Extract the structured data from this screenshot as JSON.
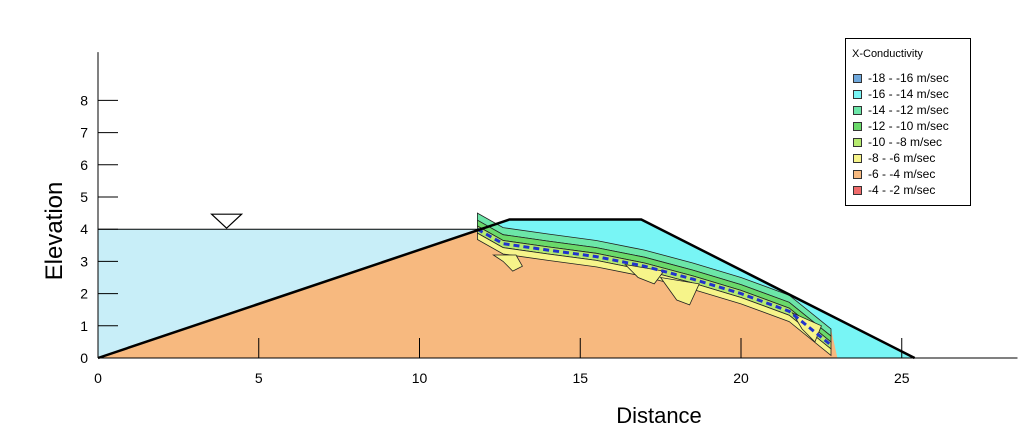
{
  "chart_data": {
    "type": "area",
    "xlabel": "Distance",
    "ylabel": "Elevation",
    "xlim": [
      0,
      28.6
    ],
    "ylim": [
      0,
      9.5
    ],
    "x_ticks": [
      0,
      5,
      10,
      15,
      20,
      25
    ],
    "y_ticks": [
      0,
      1,
      2,
      3,
      4,
      5,
      6,
      7,
      8
    ],
    "reservoir_level": 4,
    "dam_profile": [
      [
        0,
        0
      ],
      [
        12.8,
        4.3
      ],
      [
        16.9,
        4.3
      ],
      [
        25.4,
        0
      ]
    ],
    "phreatic_line": [
      [
        11.8,
        4.0
      ],
      [
        12.6,
        3.55
      ],
      [
        14,
        3.35
      ],
      [
        15.5,
        3.15
      ],
      [
        17,
        2.85
      ],
      [
        18.5,
        2.45
      ],
      [
        20,
        2.0
      ],
      [
        21.5,
        1.45
      ],
      [
        22.8,
        0.4
      ]
    ],
    "legend_title": "X-Conductivity",
    "legend": [
      {
        "label": "-18 - -16 m/sec",
        "color": "#6fa8dc"
      },
      {
        "label": "-16 - -14 m/sec",
        "color": "#78f5f5"
      },
      {
        "label": "-14 - -12 m/sec",
        "color": "#6ce6a8"
      },
      {
        "label": "-12 - -10 m/sec",
        "color": "#6ad96a"
      },
      {
        "label": "-10 - -8 m/sec",
        "color": "#b5ea6e"
      },
      {
        "label": "-8 - -6 m/sec",
        "color": "#f6f48a"
      },
      {
        "label": "-6 - -4 m/sec",
        "color": "#f7b97f"
      },
      {
        "label": "-4 - -2 m/sec",
        "color": "#ef6a6a"
      }
    ],
    "region_colors": {
      "water": "#c8eef8",
      "saturated": "#f7b97f",
      "unsaturated": "#78f5f5",
      "band_1": "#6ce6a8",
      "band_2": "#6ad96a",
      "band_3": "#b5ea6e",
      "band_4": "#f6f48a",
      "phreatic": "#2233cc"
    }
  }
}
